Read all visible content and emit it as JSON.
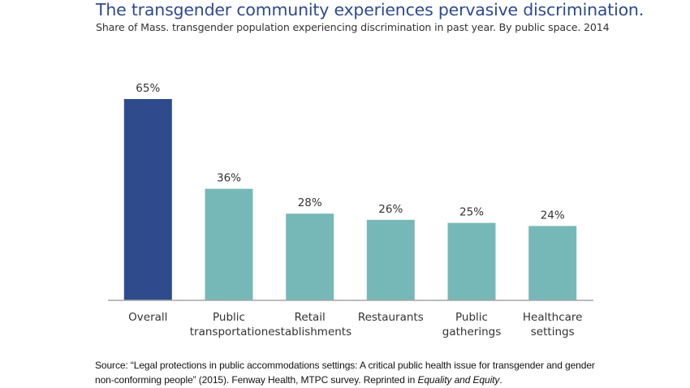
{
  "header": {
    "title": "The transgender community experiences pervasive discrimination.",
    "subtitle": "Share of Mass. transgender population experiencing discrimination in past year. By public space. 2014"
  },
  "chart_data": {
    "type": "bar",
    "title": "The transgender community experiences pervasive discrimination.",
    "subtitle": "Share of Mass. transgender population experiencing discrimination in past year. By public space. 2014",
    "xlabel": "",
    "ylabel": "",
    "categories": [
      [
        "Overall"
      ],
      [
        "Public",
        "transportation"
      ],
      [
        "Retail",
        "establishments"
      ],
      [
        "Restaurants"
      ],
      [
        "Public",
        "gatherings"
      ],
      [
        "Healthcare",
        "settings"
      ]
    ],
    "values": [
      65,
      36,
      28,
      26,
      25,
      24
    ],
    "data_labels": [
      "65%",
      "36%",
      "28%",
      "26%",
      "25%",
      "24%"
    ],
    "unit": "%",
    "ylim": [
      0,
      65
    ],
    "grid": false,
    "legend": "none",
    "colors": {
      "highlight": "#304b8c",
      "default": "#76b8b7",
      "axis": "#a6a6a6",
      "label_text": "#333333"
    },
    "highlight_index": 0
  },
  "footer": {
    "source_prefix": "Source: “Legal protections in public accommodations settings: A critical public health issue for transgender and gender non-conforming people” (2015). Fenway Health, MTPC survey. Reprinted in ",
    "source_italic": "Equality and Equity",
    "source_suffix": "."
  }
}
